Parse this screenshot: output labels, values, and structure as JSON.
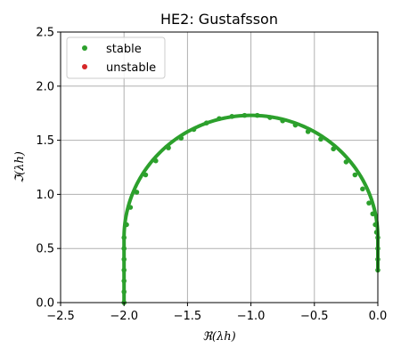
{
  "chart_data": {
    "type": "scatter",
    "title": "HE2: Gustafsson",
    "xlabel": "ℜ(λh)",
    "ylabel": "ℑ(λh)",
    "xlim": [
      -2.5,
      0.0
    ],
    "ylim": [
      0.0,
      2.5
    ],
    "x_ticks": [
      "−2.5",
      "−2.0",
      "−1.5",
      "−1.0",
      "−0.5",
      "0.0"
    ],
    "y_ticks": [
      "0.0",
      "0.5",
      "1.0",
      "1.5",
      "2.0",
      "2.5"
    ],
    "grid": true,
    "legend_position": "upper-left",
    "series": [
      {
        "name": "stable",
        "color": "#2ca02c",
        "curve": {
          "shape": "stability-boundary-arc",
          "vertical_segment": {
            "x": -2.0,
            "y_range": [
              0.0,
              0.6
            ]
          },
          "arc": {
            "x_start": -2.0,
            "y_start": 0.6,
            "x_peak": -1.0,
            "y_peak": 1.73,
            "x_end": 0.0,
            "y_end": 0.6
          },
          "right_segment": {
            "x": 0.0,
            "y_range": [
              0.3,
              0.6
            ]
          }
        },
        "sample_points": [
          [
            -2.0,
            0.0
          ],
          [
            -2.0,
            0.1
          ],
          [
            -2.0,
            0.2
          ],
          [
            -2.0,
            0.3
          ],
          [
            -2.0,
            0.4
          ],
          [
            -2.0,
            0.5
          ],
          [
            -2.0,
            0.6
          ],
          [
            -1.98,
            0.72
          ],
          [
            -1.95,
            0.88
          ],
          [
            -1.9,
            1.02
          ],
          [
            -1.83,
            1.18
          ],
          [
            -1.75,
            1.31
          ],
          [
            -1.65,
            1.43
          ],
          [
            -1.55,
            1.52
          ],
          [
            -1.45,
            1.6
          ],
          [
            -1.35,
            1.66
          ],
          [
            -1.25,
            1.7
          ],
          [
            -1.15,
            1.72
          ],
          [
            -1.05,
            1.73
          ],
          [
            -0.95,
            1.73
          ],
          [
            -0.85,
            1.71
          ],
          [
            -0.75,
            1.68
          ],
          [
            -0.65,
            1.64
          ],
          [
            -0.55,
            1.58
          ],
          [
            -0.45,
            1.51
          ],
          [
            -0.35,
            1.42
          ],
          [
            -0.25,
            1.3
          ],
          [
            -0.18,
            1.18
          ],
          [
            -0.12,
            1.05
          ],
          [
            -0.07,
            0.92
          ],
          [
            -0.04,
            0.82
          ],
          [
            -0.02,
            0.72
          ],
          [
            -0.01,
            0.65
          ],
          [
            0.0,
            0.6
          ],
          [
            0.0,
            0.5
          ],
          [
            0.0,
            0.4
          ],
          [
            0.0,
            0.3
          ]
        ]
      },
      {
        "name": "unstable",
        "color": "#d62728",
        "sample_points": []
      }
    ]
  }
}
